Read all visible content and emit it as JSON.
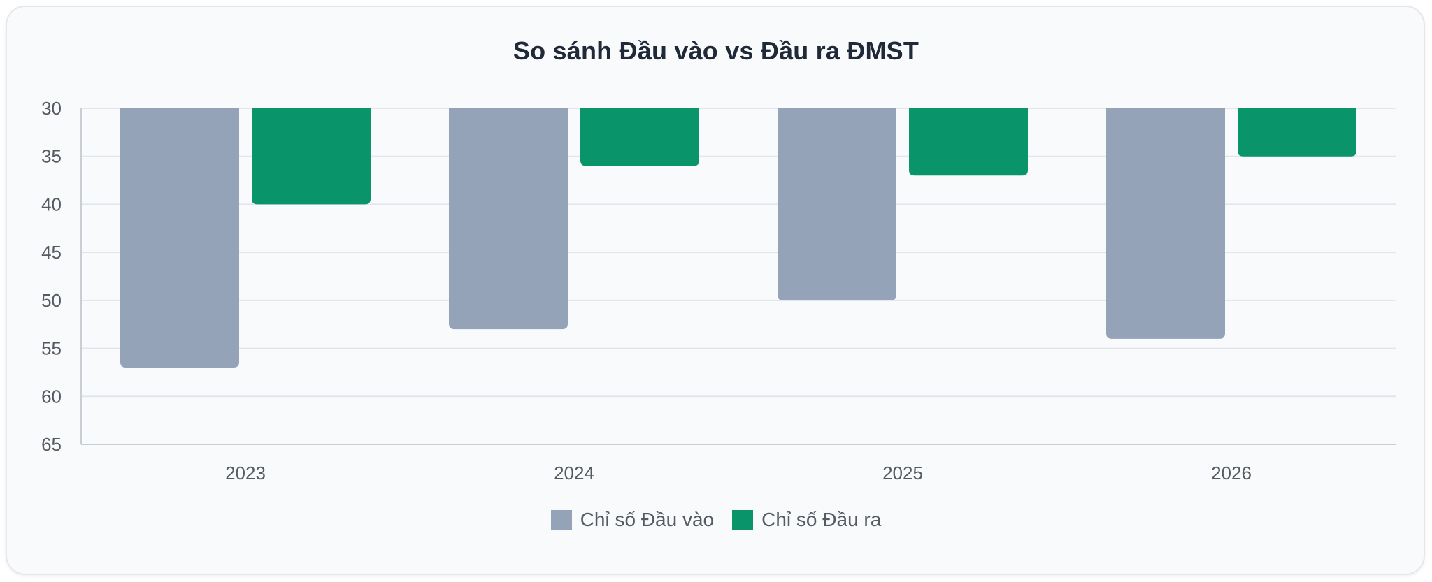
{
  "chart_data": {
    "type": "bar",
    "title": "So sánh Đầu vào vs Đầu ra ĐMST",
    "categories": [
      "2023",
      "2024",
      "2025",
      "2026"
    ],
    "series": [
      {
        "name": "Chỉ số Đầu vào",
        "values": [
          57,
          53,
          50,
          54
        ],
        "color": "#94a3b8"
      },
      {
        "name": "Chỉ số Đầu ra",
        "values": [
          40,
          36,
          37,
          35
        ],
        "color": "#0a946a"
      }
    ],
    "y_ticks": [
      "30",
      "35",
      "40",
      "45",
      "50",
      "55",
      "60",
      "65"
    ],
    "ylim": [
      30,
      65
    ],
    "y_reversed": true,
    "grid": true,
    "legend_position": "bottom"
  }
}
